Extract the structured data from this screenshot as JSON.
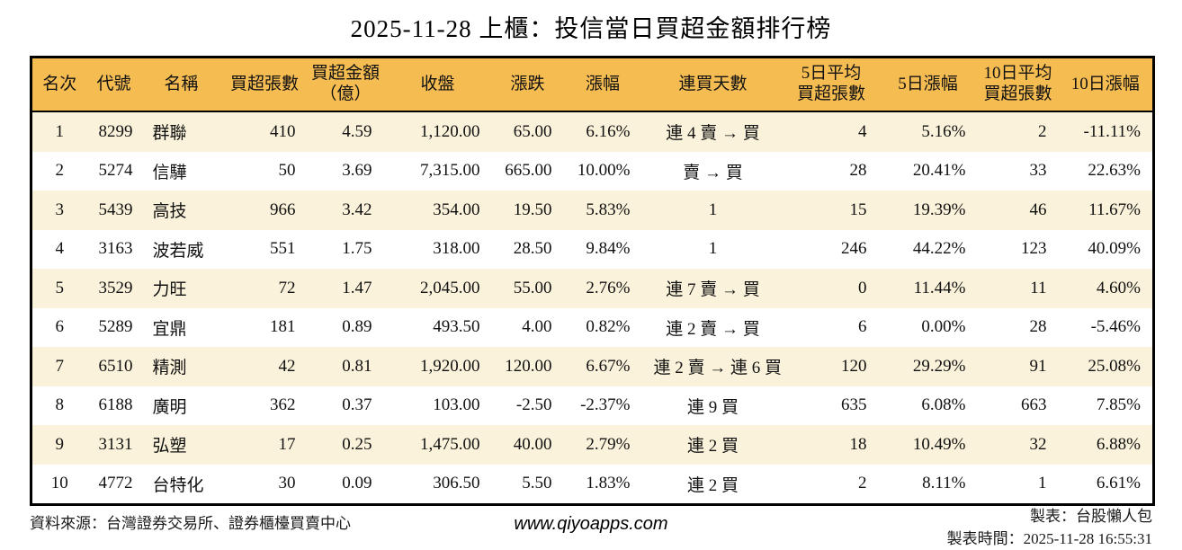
{
  "title": "2025-11-28 上櫃：投信當日買超金額排行榜",
  "colors": {
    "header_bg": "#F5BC52",
    "row_alt_bg": "#FAF2DA",
    "up_red": "#D02626",
    "down_green": "#1F7D24",
    "border": "#000000"
  },
  "chart_data": {
    "type": "table",
    "columns": [
      {
        "key": "rank",
        "label": "名次",
        "align": "center"
      },
      {
        "key": "code",
        "label": "代號",
        "align": "center"
      },
      {
        "key": "name",
        "label": "名稱",
        "align": "left"
      },
      {
        "key": "net-buy-volume",
        "label": "買超張數",
        "align": "right"
      },
      {
        "key": "net-buy-amount",
        "label": "買超金額\n（億）",
        "align": "right"
      },
      {
        "key": "close",
        "label": "收盤",
        "align": "right"
      },
      {
        "key": "change",
        "label": "漲跌",
        "align": "right"
      },
      {
        "key": "change-pct",
        "label": "漲幅",
        "align": "right"
      },
      {
        "key": "consecutive-days",
        "label": "連買天數",
        "align": "center"
      },
      {
        "key": "avg5-volume",
        "label": "5日平均\n買超張數",
        "align": "right"
      },
      {
        "key": "change5-pct",
        "label": "5日漲幅",
        "align": "right"
      },
      {
        "key": "avg10-volume",
        "label": "10日平均\n買超張數",
        "align": "right"
      },
      {
        "key": "change10-pct",
        "label": "10日漲幅",
        "align": "right"
      }
    ],
    "rows": [
      [
        "1",
        "8299",
        "群聯",
        "410",
        "4.59",
        "1,120.00",
        {
          "t": "65.00",
          "c": "up"
        },
        {
          "t": "6.16%",
          "c": "up"
        },
        "連 4 賣 → 買",
        "4",
        {
          "t": "5.16%",
          "c": "up"
        },
        "2",
        {
          "t": "-11.11%",
          "c": "down"
        }
      ],
      [
        "2",
        "5274",
        "信驊",
        "50",
        "3.69",
        "7,315.00",
        {
          "t": "665.00",
          "c": "up"
        },
        {
          "t": "10.00%",
          "c": "up"
        },
        "賣 → 買",
        "28",
        {
          "t": "20.41%",
          "c": "up"
        },
        "33",
        {
          "t": "22.63%",
          "c": "up"
        }
      ],
      [
        "3",
        "5439",
        "高技",
        "966",
        "3.42",
        "354.00",
        {
          "t": "19.50",
          "c": "up"
        },
        {
          "t": "5.83%",
          "c": "up"
        },
        "1",
        "15",
        {
          "t": "19.39%",
          "c": "up"
        },
        "46",
        {
          "t": "11.67%",
          "c": "up"
        }
      ],
      [
        "4",
        "3163",
        "波若威",
        "551",
        "1.75",
        "318.00",
        {
          "t": "28.50",
          "c": "up"
        },
        {
          "t": "9.84%",
          "c": "up"
        },
        "1",
        "246",
        {
          "t": "44.22%",
          "c": "up"
        },
        "123",
        {
          "t": "40.09%",
          "c": "up"
        }
      ],
      [
        "5",
        "3529",
        "力旺",
        "72",
        "1.47",
        "2,045.00",
        {
          "t": "55.00",
          "c": "up"
        },
        {
          "t": "2.76%",
          "c": "up"
        },
        "連 7 賣 → 買",
        "0",
        {
          "t": "11.44%",
          "c": "up"
        },
        "11",
        {
          "t": "4.60%",
          "c": "up"
        }
      ],
      [
        "6",
        "5289",
        "宜鼎",
        "181",
        "0.89",
        "493.50",
        {
          "t": "4.00",
          "c": "up"
        },
        {
          "t": "0.82%",
          "c": "up"
        },
        "連 2 賣 → 買",
        "6",
        "0.00%",
        "28",
        {
          "t": "-5.46%",
          "c": "down"
        }
      ],
      [
        "7",
        "6510",
        "精測",
        "42",
        "0.81",
        "1,920.00",
        {
          "t": "120.00",
          "c": "up"
        },
        {
          "t": "6.67%",
          "c": "up"
        },
        "連 2 賣 → 連 6 買",
        "120",
        {
          "t": "29.29%",
          "c": "up"
        },
        "91",
        {
          "t": "25.08%",
          "c": "up"
        }
      ],
      [
        "8",
        "6188",
        "廣明",
        "362",
        "0.37",
        "103.00",
        {
          "t": "-2.50",
          "c": "down"
        },
        {
          "t": "-2.37%",
          "c": "down"
        },
        "連 9 買",
        "635",
        {
          "t": "6.08%",
          "c": "up"
        },
        "663",
        {
          "t": "7.85%",
          "c": "up"
        }
      ],
      [
        "9",
        "3131",
        "弘塑",
        "17",
        "0.25",
        "1,475.00",
        {
          "t": "40.00",
          "c": "up"
        },
        {
          "t": "2.79%",
          "c": "up"
        },
        "連 2 買",
        "18",
        {
          "t": "10.49%",
          "c": "up"
        },
        "32",
        {
          "t": "6.88%",
          "c": "up"
        }
      ],
      [
        "10",
        "4772",
        "台特化",
        "30",
        "0.09",
        "306.50",
        {
          "t": "5.50",
          "c": "up"
        },
        {
          "t": "1.83%",
          "c": "up"
        },
        "連 2 買",
        "2",
        {
          "t": "8.11%",
          "c": "up"
        },
        "1",
        {
          "t": "6.61%",
          "c": "up"
        }
      ]
    ]
  },
  "footer": {
    "source": "資料來源：台灣證券交易所、證券櫃檯買賣中心",
    "website": "www.qiyoapps.com",
    "maker": "製表：台股懶人包",
    "made_time": "製表時間：2025-11-28 16:55:31"
  }
}
